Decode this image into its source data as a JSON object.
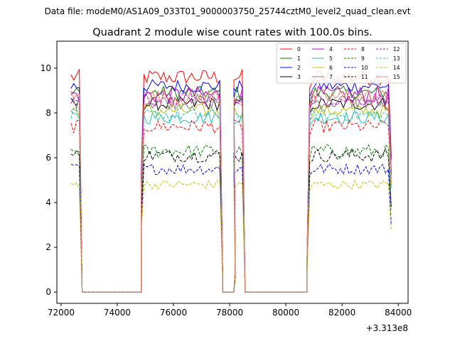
{
  "chart_data": {
    "type": "line",
    "suptitle": "Data file: modeM0/AS1A09_033T01_9000003750_25744cztM0_level2_quad_clean.evt",
    "title": "Quadrant 2 module wise count rates with 100.0s bins.",
    "xlabel": "",
    "ylabel": "",
    "x_offset_label": "+3.313e8",
    "xlim": [
      71850,
      84350
    ],
    "ylim": [
      -0.5,
      11.2
    ],
    "xticks": [
      "72000",
      "74000",
      "76000",
      "78000",
      "80000",
      "82000",
      "84000"
    ],
    "xtick_values": [
      72000,
      74000,
      76000,
      78000,
      80000,
      82000,
      84000
    ],
    "yticks": [
      "0",
      "2",
      "4",
      "6",
      "8",
      "10"
    ],
    "ytick_values": [
      0,
      2,
      4,
      6,
      8,
      10
    ],
    "legend_position": "top-right",
    "segments": [
      {
        "start": 72350,
        "end": 72650,
        "gap_end": 72750
      },
      {
        "start": 74850,
        "end": 77650,
        "gap_end": 77750
      },
      {
        "start": 78150,
        "end": 78450,
        "gap_end": 78550
      },
      {
        "start": 80750,
        "end": 83750,
        "gap_end": 83750
      }
    ],
    "zero_ranges": [
      [
        72750,
        74850
      ],
      [
        77750,
        78150
      ],
      [
        78550,
        80750
      ]
    ],
    "series": [
      {
        "name": "0",
        "color": "#ff0000",
        "dash": false,
        "base": 9.6,
        "noise": 0.35
      },
      {
        "name": "1",
        "color": "#008000",
        "dash": false,
        "base": 8.9,
        "noise": 0.3
      },
      {
        "name": "2",
        "color": "#0000ff",
        "dash": false,
        "base": 9.2,
        "noise": 0.3
      },
      {
        "name": "3",
        "color": "#000000",
        "dash": false,
        "base": 8.4,
        "noise": 0.3
      },
      {
        "name": "4",
        "color": "#c000c0",
        "dash": false,
        "base": 8.8,
        "noise": 0.4
      },
      {
        "name": "5",
        "color": "#20c0c0",
        "dash": false,
        "base": 7.8,
        "noise": 0.3
      },
      {
        "name": "6",
        "color": "#c0c000",
        "dash": false,
        "base": 8.1,
        "noise": 0.3
      },
      {
        "name": "7",
        "color": "#808080",
        "dash": false,
        "base": 8.5,
        "noise": 0.35
      },
      {
        "name": "8",
        "color": "#ff0000",
        "dash": true,
        "base": 7.4,
        "noise": 0.3
      },
      {
        "name": "9",
        "color": "#008000",
        "dash": true,
        "base": 6.3,
        "noise": 0.3
      },
      {
        "name": "10",
        "color": "#0000ff",
        "dash": true,
        "base": 5.5,
        "noise": 0.25
      },
      {
        "name": "11",
        "color": "#000000",
        "dash": true,
        "base": 6.1,
        "noise": 0.3
      },
      {
        "name": "12",
        "color": "#c000c0",
        "dash": true,
        "base": 8.6,
        "noise": 0.3
      },
      {
        "name": "13",
        "color": "#20c0c0",
        "dash": true,
        "base": 7.9,
        "noise": 0.3
      },
      {
        "name": "14",
        "color": "#c0c000",
        "dash": true,
        "base": 4.8,
        "noise": 0.2
      },
      {
        "name": "15",
        "color": "#f08070",
        "dash": false,
        "base": 8.7,
        "noise": 0.4
      }
    ]
  }
}
